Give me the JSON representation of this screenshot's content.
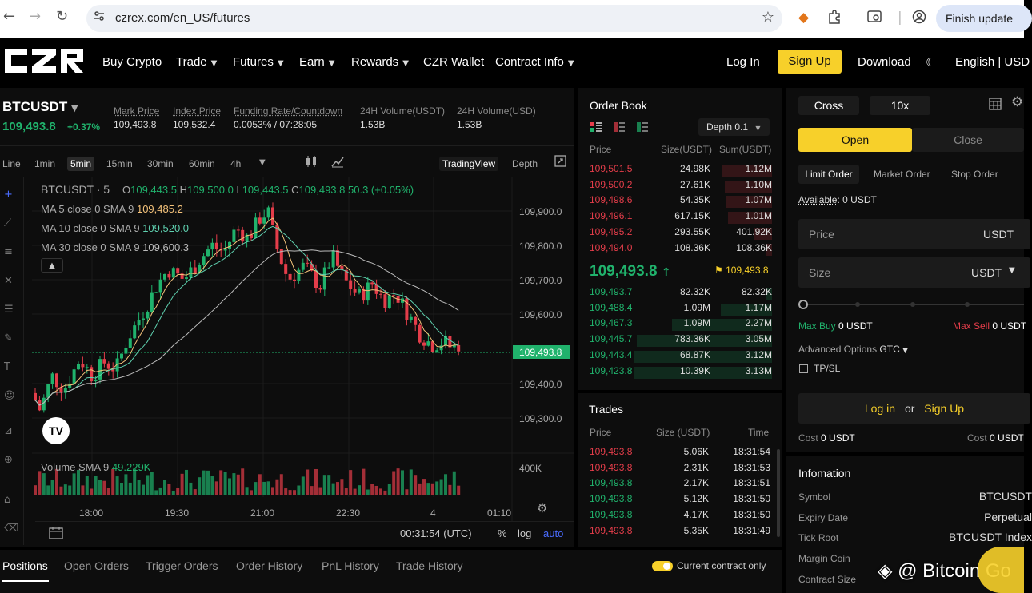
{
  "browser": {
    "url": "czrex.com/en_US/futures",
    "finish_update": "Finish update"
  },
  "header": {
    "logo_text": "CZR",
    "nav": [
      "Buy Crypto",
      "Trade",
      "Futures",
      "Earn",
      "Rewards",
      "CZR Wallet",
      "Contract Info"
    ],
    "login": "Log In",
    "signup": "Sign Up",
    "download": "Download",
    "language": "English | USD"
  },
  "ticker": {
    "symbol": "BTCUSDT",
    "price": "109,493.8",
    "change": "+0.37%",
    "mark_price_label": "Mark Price",
    "mark_price": "109,493.8",
    "index_price_label": "Index Price",
    "index_price": "109,532.4",
    "funding_label": "Funding Rate/Countdown",
    "funding": "0.0053% / 07:28:05",
    "vol_usdt_label": "24H Volume(USDT)",
    "vol_usdt": "1.53B",
    "vol_usd_label": "24H Volume(USD)",
    "vol_usd": "1.53B"
  },
  "chart": {
    "timeframes": [
      "Line",
      "1min",
      "5min",
      "15min",
      "30min",
      "60min",
      "4h"
    ],
    "active_timeframe": "5min",
    "tradingview": "TradingView",
    "depth": "Depth",
    "legend_title": "BTCUSDT · 5",
    "ohlc": {
      "o": "O",
      "o_val": "109,443.5",
      "h": "H",
      "h_val": "109,500.0",
      "l": "L",
      "l_val": "109,443.5",
      "c": "C",
      "c_val": "109,493.8",
      "chg": "50.3 (+0.05%)"
    },
    "ma5_label": "MA 5 close 0 SMA 9",
    "ma5_val": "109,485.2",
    "ma10_label": "MA 10 close 0 SMA 9",
    "ma10_val": "109,520.0",
    "ma30_label": "MA 30 close 0 SMA 9",
    "ma30_val": "109,600.3",
    "y_ticks": [
      "109,900.0",
      "109,800.0",
      "109,700.0",
      "109,600.0",
      "109,400.0",
      "109,300.0"
    ],
    "current_price_tag": "109,493.8",
    "x_ticks": [
      "18:00",
      "19:30",
      "21:00",
      "22:30",
      "4",
      "01:10"
    ],
    "volume_label": "Volume SMA 9",
    "volume_val": "49.229K",
    "volume_axis": "400K",
    "clock": "00:31:54 (UTC)",
    "pct": "%",
    "log": "log",
    "auto": "auto",
    "colors": {
      "up": "#20b26c",
      "down": "#e43d4a",
      "ma5": "#f4c27a",
      "ma10": "#5fd1b0",
      "ma30": "#bbbbbb"
    }
  },
  "orderbook": {
    "title": "Order Book",
    "depth": "Depth 0.1",
    "headers": [
      "Price",
      "Size(USDT)",
      "Sum(USDT)"
    ],
    "asks": [
      {
        "p": "109,501.5",
        "s": "24.98K",
        "t": "1.12M",
        "fill": 0.27
      },
      {
        "p": "109,500.2",
        "s": "27.61K",
        "t": "1.10M",
        "fill": 0.26
      },
      {
        "p": "109,498.6",
        "s": "54.35K",
        "t": "1.07M",
        "fill": 0.25
      },
      {
        "p": "109,496.1",
        "s": "617.15K",
        "t": "1.01M",
        "fill": 0.24
      },
      {
        "p": "109,495.2",
        "s": "293.55K",
        "t": "401.92K",
        "fill": 0.1
      },
      {
        "p": "109,494.0",
        "s": "108.36K",
        "t": "108.36K",
        "fill": 0.03
      }
    ],
    "mid_price": "109,493.8",
    "mark": "109,493.8",
    "bids": [
      {
        "p": "109,493.7",
        "s": "82.32K",
        "t": "82.32K",
        "fill": 0.03
      },
      {
        "p": "109,488.4",
        "s": "1.09M",
        "t": "1.17M",
        "fill": 0.28
      },
      {
        "p": "109,467.3",
        "s": "1.09M",
        "t": "2.27M",
        "fill": 0.55
      },
      {
        "p": "109,445.7",
        "s": "783.36K",
        "t": "3.05M",
        "fill": 0.74
      },
      {
        "p": "109,443.4",
        "s": "68.87K",
        "t": "3.12M",
        "fill": 0.76
      },
      {
        "p": "109,423.8",
        "s": "10.39K",
        "t": "3.13M",
        "fill": 0.76
      }
    ]
  },
  "trades": {
    "title": "Trades",
    "headers": [
      "Price",
      "Size (USDT)",
      "Time"
    ],
    "rows": [
      {
        "p": "109,493.8",
        "s": "5.06K",
        "t": "18:31:54",
        "side": "sell"
      },
      {
        "p": "109,493.8",
        "s": "2.31K",
        "t": "18:31:53",
        "side": "sell"
      },
      {
        "p": "109,493.8",
        "s": "2.17K",
        "t": "18:31:51",
        "side": "buy"
      },
      {
        "p": "109,493.8",
        "s": "5.12K",
        "t": "18:31:50",
        "side": "buy"
      },
      {
        "p": "109,493.8",
        "s": "4.17K",
        "t": "18:31:50",
        "side": "buy"
      },
      {
        "p": "109,493.8",
        "s": "5.35K",
        "t": "18:31:49",
        "side": "sell"
      }
    ]
  },
  "trade_panel": {
    "margin_mode": "Cross",
    "leverage": "10x",
    "open": "Open",
    "close": "Close",
    "order_types": [
      "Limit Order",
      "Market Order",
      "Stop Order"
    ],
    "available_label": "Available",
    "available_value": ": 0 USDT",
    "price_placeholder": "Price",
    "price_unit": "USDT",
    "size_placeholder": "Size",
    "size_unit": "USDT",
    "max_buy_label": "Max Buy",
    "max_buy": "0 USDT",
    "max_sell_label": "Max Sell",
    "max_sell": "0 USDT",
    "advanced_label": "Advanced Options",
    "advanced_value": "GTC",
    "tpsl": "TP/SL",
    "login": "Log in",
    "or": "or",
    "signup": "Sign Up",
    "cost_label": "Cost",
    "cost_value": "0 USDT",
    "cost_label_2": "Cost",
    "cost_value_2": "0 USDT"
  },
  "info": {
    "title": "Infomation",
    "rows": [
      {
        "k": "Symbol",
        "v": "BTCUSDT"
      },
      {
        "k": "Expiry Date",
        "v": "Perpetual"
      },
      {
        "k": "Tick Root",
        "v": "BTCUSDT Index"
      },
      {
        "k": "Margin Coin",
        "v": ""
      },
      {
        "k": "Contract Size",
        "v": ""
      }
    ]
  },
  "bottom": {
    "tabs": [
      "Positions",
      "Open Orders",
      "Trigger Orders",
      "Order History",
      "PnL History",
      "Trade History"
    ],
    "current_only": "Current contract only"
  },
  "watermark": "@ Bitcoin Go"
}
